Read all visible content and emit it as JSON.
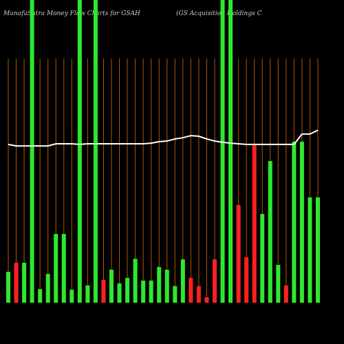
{
  "chart_data": {
    "type": "bar",
    "title": "MunafaSutra  Money Flow Charts for GSAH",
    "subtitle": "(GS Acquisition Holdings C",
    "categories": [
      null,
      null,
      null,
      null,
      null,
      null,
      null,
      null,
      null,
      null,
      null,
      null,
      null,
      null,
      null,
      null,
      null,
      null,
      null,
      null,
      null,
      null,
      null,
      null,
      null,
      null,
      null,
      null,
      null,
      null,
      null,
      null,
      null,
      null,
      null,
      null,
      null,
      null,
      null,
      null
    ],
    "values": [
      10.2,
      13.2,
      13.2,
      100,
      4.5,
      9.5,
      22.7,
      22.7,
      4.3,
      100,
      5.7,
      100,
      7.5,
      10.9,
      6.4,
      8.2,
      14.5,
      7.3,
      7.3,
      11.8,
      10.9,
      5.5,
      14.3,
      8.2,
      5.5,
      1.8,
      14.3,
      100,
      100,
      32.3,
      15,
      52.3,
      29.3,
      46.8,
      12.5,
      5.7,
      53.2,
      53.2,
      34.8,
      34.8
    ],
    "colors": [
      "#2ee82e",
      "#ff2020",
      "#2ee82e",
      "#2ee82e",
      "#2ee82e",
      "#2ee82e",
      "#2ee82e",
      "#2ee82e",
      "#2ee82e",
      "#2ee82e",
      "#2ee82e",
      "#2ee82e",
      "#ff2020",
      "#2ee82e",
      "#2ee82e",
      "#2ee82e",
      "#2ee82e",
      "#2ee82e",
      "#2ee82e",
      "#2ee82e",
      "#2ee82e",
      "#2ee82e",
      "#2ee82e",
      "#ff2020",
      "#ff2020",
      "#ff2020",
      "#ff2020",
      "#2ee82e",
      "#2ee82e",
      "#ff2020",
      "#ff2020",
      "#ff2020",
      "#2ee82e",
      "#2ee82e",
      "#2ee82e",
      "#ff2020",
      "#2ee82e",
      "#2ee82e",
      "#2ee82e",
      "#2ee82e"
    ],
    "line": {
      "color": "#ffffff",
      "values": [
        52.3,
        51.8,
        51.8,
        51.8,
        51.8,
        51.8,
        52.5,
        52.5,
        52.5,
        52.3,
        52.5,
        52.5,
        52.5,
        52.5,
        52.5,
        52.5,
        52.5,
        52.5,
        52.7,
        53.2,
        53.4,
        54.1,
        54.5,
        55.2,
        55,
        54.1,
        53.4,
        53,
        52.7,
        52.5,
        52.3,
        52.3,
        52.3,
        52.3,
        52.3,
        52.3,
        52.3,
        55.7,
        55.7,
        57
      ]
    },
    "ylim": [
      0,
      100
    ],
    "grid_color": "#b35900"
  }
}
